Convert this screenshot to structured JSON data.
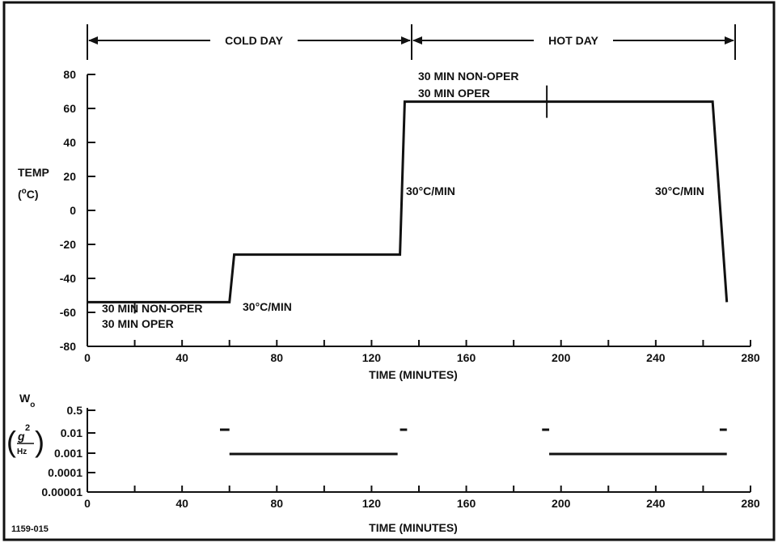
{
  "figure": {
    "figure_id": "1159-015",
    "cold_label": "COLD DAY",
    "hot_label": "HOT DAY"
  },
  "chart_data": [
    {
      "type": "line",
      "xlabel": "TIME (MINUTES)",
      "ylabel": "TEMP",
      "ylabel_unit": "(°C)",
      "xlim": [
        0,
        280
      ],
      "ylim": [
        -80,
        80
      ],
      "x_ticks": [
        0,
        40,
        80,
        120,
        160,
        200,
        240,
        280
      ],
      "y_ticks": [
        80,
        60,
        40,
        20,
        0,
        -20,
        -40,
        -60,
        -80
      ],
      "y_tick_labels": [
        "80",
        "60",
        "40",
        "20",
        "0",
        "-20",
        "-40",
        "-60",
        "-80"
      ],
      "grid": false,
      "series": [
        {
          "x": [
            0,
            60,
            62,
            132,
            134,
            264,
            270
          ],
          "y": [
            -54,
            -54,
            -26,
            -26,
            64,
            64,
            -54
          ]
        }
      ],
      "annotations": {
        "cold_dwell_line1": "30 MIN NON-OPER",
        "cold_dwell_line2": "30 MIN OPER",
        "hot_dwell_line1": "30 MIN NON-OPER",
        "hot_dwell_line2": "30 MIN OPER",
        "rate_1": "30°C/MIN",
        "rate_2": "30°C/MIN",
        "rate_3": "30°C/MIN"
      }
    },
    {
      "type": "line",
      "xlabel": "TIME (MINUTES)",
      "ylabel": "W",
      "ylabel_sub": "o",
      "ylabel_unit_num": "g",
      "ylabel_unit_exp": "2",
      "ylabel_unit_den": "Hz",
      "xlim": [
        0,
        280
      ],
      "y_scale": "log",
      "x_ticks": [
        0,
        40,
        80,
        120,
        160,
        200,
        240,
        280
      ],
      "y_tick_labels": [
        "0.5",
        "0.01",
        "0.001",
        "0.0001",
        "0.00001"
      ],
      "grid": false,
      "segments": [
        {
          "x": [
            56,
            60
          ],
          "y": 0.02
        },
        {
          "x": [
            60,
            131
          ],
          "y": 0.001
        },
        {
          "x": [
            132,
            135
          ],
          "y": 0.02
        },
        {
          "x": [
            192,
            195
          ],
          "y": 0.02
        },
        {
          "x": [
            195,
            270
          ],
          "y": 0.001
        },
        {
          "x": [
            267,
            270
          ],
          "y": 0.02
        }
      ]
    }
  ]
}
